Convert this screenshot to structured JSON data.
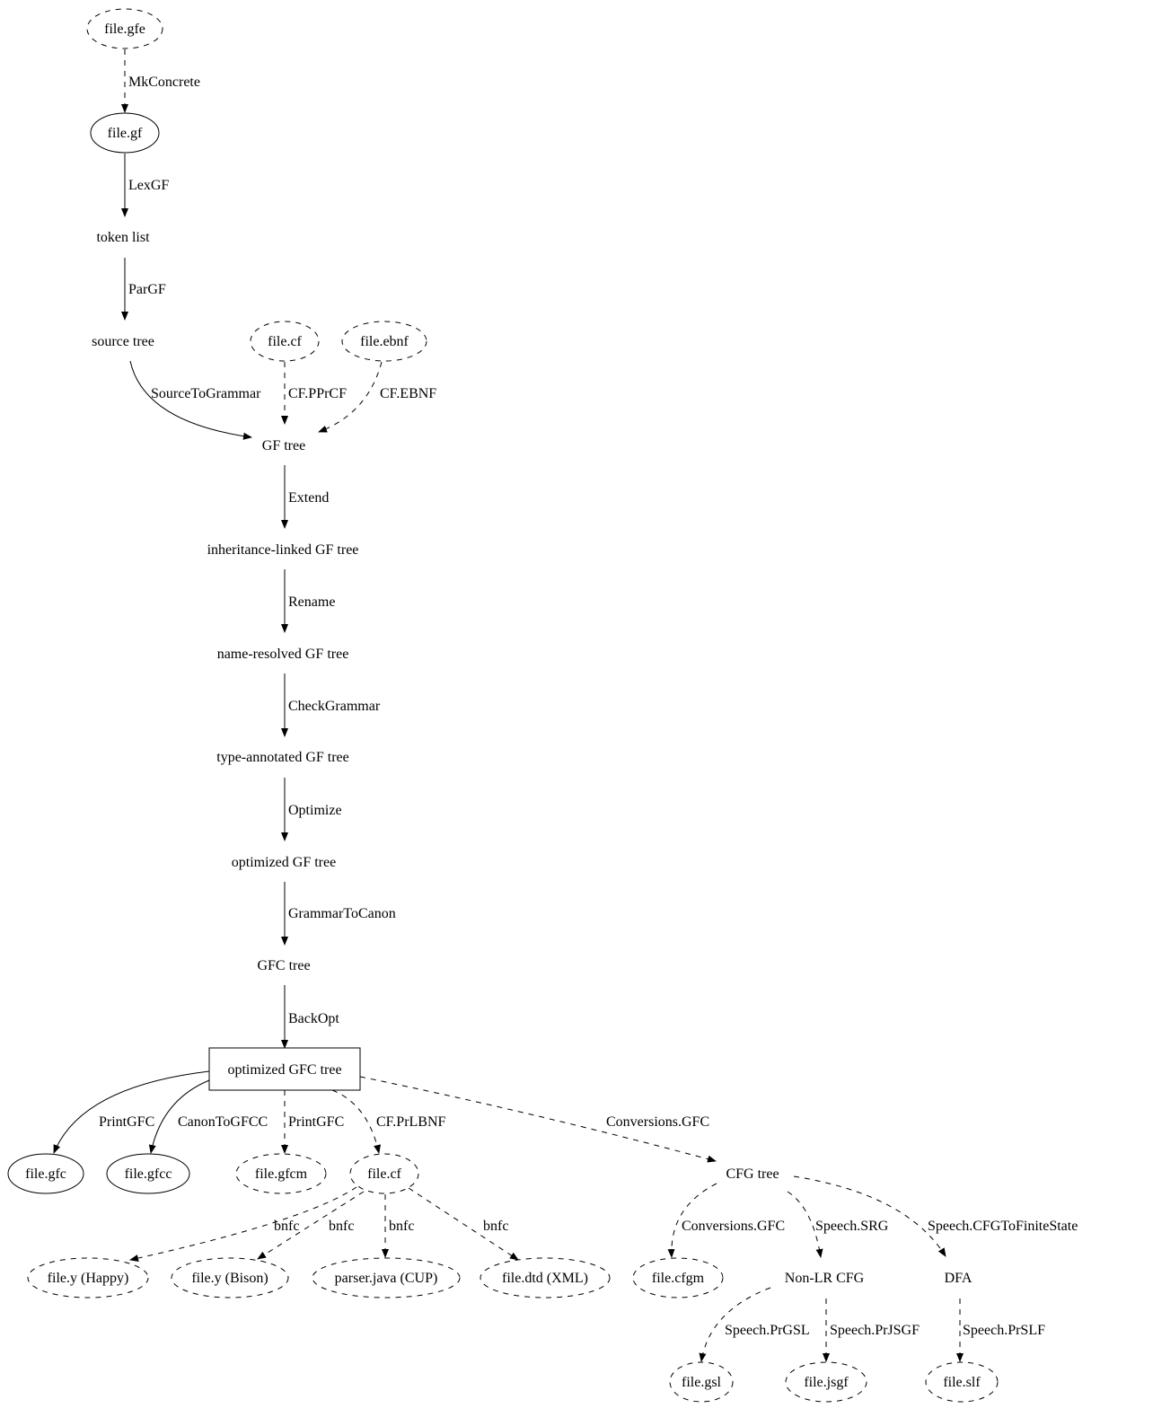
{
  "nodes": [
    {
      "id": "gfe",
      "label": "file.gfe",
      "shape": "ellipse",
      "style": "dashed"
    },
    {
      "id": "gf",
      "label": "file.gf",
      "shape": "ellipse",
      "style": "solid"
    },
    {
      "id": "tokens",
      "label": "token list",
      "shape": "plaintext"
    },
    {
      "id": "source",
      "label": "source tree",
      "shape": "plaintext"
    },
    {
      "id": "cf1",
      "label": "file.cf",
      "shape": "ellipse",
      "style": "dashed"
    },
    {
      "id": "ebnf",
      "label": "file.ebnf",
      "shape": "ellipse",
      "style": "dashed"
    },
    {
      "id": "gftree",
      "label": "GF tree",
      "shape": "plaintext"
    },
    {
      "id": "inh",
      "label": "inheritance-linked GF tree",
      "shape": "plaintext"
    },
    {
      "id": "nameres",
      "label": "name-resolved GF tree",
      "shape": "plaintext"
    },
    {
      "id": "typeann",
      "label": "type-annotated GF tree",
      "shape": "plaintext"
    },
    {
      "id": "optgf",
      "label": "optimized GF tree",
      "shape": "plaintext"
    },
    {
      "id": "gfc",
      "label": "GFC tree",
      "shape": "plaintext"
    },
    {
      "id": "optgfc",
      "label": "optimized GFC tree",
      "shape": "box",
      "style": "solid"
    },
    {
      "id": "fgfc",
      "label": "file.gfc",
      "shape": "ellipse",
      "style": "solid"
    },
    {
      "id": "fgfcc",
      "label": "file.gfcc",
      "shape": "ellipse",
      "style": "solid"
    },
    {
      "id": "gfcm",
      "label": "file.gfcm",
      "shape": "ellipse",
      "style": "dashed"
    },
    {
      "id": "cf2",
      "label": "file.cf",
      "shape": "ellipse",
      "style": "dashed"
    },
    {
      "id": "cfgtree",
      "label": "CFG tree",
      "shape": "plaintext"
    },
    {
      "id": "happy",
      "label": "file.y (Happy)",
      "shape": "ellipse",
      "style": "dashed"
    },
    {
      "id": "bison",
      "label": "file.y (Bison)",
      "shape": "ellipse",
      "style": "dashed"
    },
    {
      "id": "cup",
      "label": "parser.java (CUP)",
      "shape": "ellipse",
      "style": "dashed"
    },
    {
      "id": "dtd",
      "label": "file.dtd (XML)",
      "shape": "ellipse",
      "style": "dashed"
    },
    {
      "id": "cfgm",
      "label": "file.cfgm",
      "shape": "ellipse",
      "style": "dashed"
    },
    {
      "id": "nonlr",
      "label": "Non-LR CFG",
      "shape": "plaintext"
    },
    {
      "id": "dfa",
      "label": "DFA",
      "shape": "plaintext"
    },
    {
      "id": "gsl",
      "label": "file.gsl",
      "shape": "ellipse",
      "style": "dashed"
    },
    {
      "id": "jsgf",
      "label": "file.jsgf",
      "shape": "ellipse",
      "style": "dashed"
    },
    {
      "id": "slf",
      "label": "file.slf",
      "shape": "ellipse",
      "style": "dashed"
    }
  ],
  "edges": [
    {
      "from": "gfe",
      "to": "gf",
      "label": "MkConcrete",
      "style": "dashed"
    },
    {
      "from": "gf",
      "to": "tokens",
      "label": "LexGF",
      "style": "solid"
    },
    {
      "from": "tokens",
      "to": "source",
      "label": "ParGF",
      "style": "solid"
    },
    {
      "from": "source",
      "to": "gftree",
      "label": "SourceToGrammar",
      "style": "solid"
    },
    {
      "from": "cf1",
      "to": "gftree",
      "label": "CF.PPrCF",
      "style": "dashed"
    },
    {
      "from": "ebnf",
      "to": "gftree",
      "label": "CF.EBNF",
      "style": "dashed"
    },
    {
      "from": "gftree",
      "to": "inh",
      "label": "Extend",
      "style": "solid"
    },
    {
      "from": "inh",
      "to": "nameres",
      "label": "Rename",
      "style": "solid"
    },
    {
      "from": "nameres",
      "to": "typeann",
      "label": "CheckGrammar",
      "style": "solid"
    },
    {
      "from": "typeann",
      "to": "optgf",
      "label": "Optimize",
      "style": "solid"
    },
    {
      "from": "optgf",
      "to": "gfc",
      "label": "GrammarToCanon",
      "style": "solid"
    },
    {
      "from": "gfc",
      "to": "optgfc",
      "label": "BackOpt",
      "style": "solid"
    },
    {
      "from": "optgfc",
      "to": "fgfc",
      "label": "PrintGFC",
      "style": "solid"
    },
    {
      "from": "optgfc",
      "to": "fgfcc",
      "label": "CanonToGFCC",
      "style": "solid"
    },
    {
      "from": "optgfc",
      "to": "gfcm",
      "label": "PrintGFC",
      "style": "dashed"
    },
    {
      "from": "optgfc",
      "to": "cf2",
      "label": "CF.PrLBNF",
      "style": "dashed"
    },
    {
      "from": "optgfc",
      "to": "cfgtree",
      "label": "Conversions.GFC",
      "style": "dashed"
    },
    {
      "from": "cf2",
      "to": "happy",
      "label": "bnfc",
      "style": "dashed"
    },
    {
      "from": "cf2",
      "to": "bison",
      "label": "bnfc",
      "style": "dashed"
    },
    {
      "from": "cf2",
      "to": "cup",
      "label": "bnfc",
      "style": "dashed"
    },
    {
      "from": "cf2",
      "to": "dtd",
      "label": "bnfc",
      "style": "dashed"
    },
    {
      "from": "cfgtree",
      "to": "cfgm",
      "label": "Conversions.GFC",
      "style": "dashed"
    },
    {
      "from": "cfgtree",
      "to": "nonlr",
      "label": "Speech.SRG",
      "style": "dashed"
    },
    {
      "from": "cfgtree",
      "to": "dfa",
      "label": "Speech.CFGToFiniteState",
      "style": "dashed"
    },
    {
      "from": "nonlr",
      "to": "gsl",
      "label": "Speech.PrGSL",
      "style": "dashed"
    },
    {
      "from": "nonlr",
      "to": "jsgf",
      "label": "Speech.PrJSGF",
      "style": "dashed"
    },
    {
      "from": "dfa",
      "to": "slf",
      "label": "Speech.PrSLF",
      "style": "dashed"
    }
  ]
}
